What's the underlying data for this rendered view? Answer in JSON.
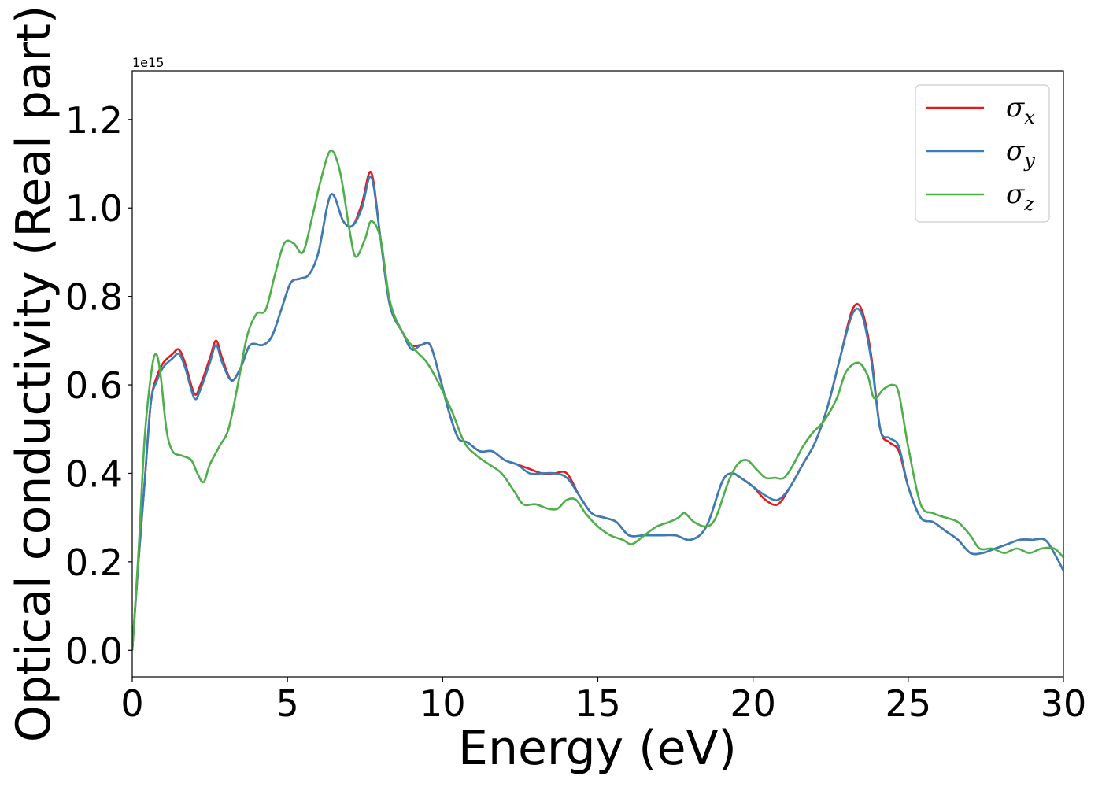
{
  "chart_data": {
    "type": "line",
    "title": "",
    "xlabel": "Energy (eV)",
    "ylabel": "Optical conductivity (Real part)",
    "y_offset_label": "1e15",
    "xlim": [
      0,
      30
    ],
    "ylim": [
      -0.06,
      1.31
    ],
    "xticks": [
      0,
      5,
      10,
      15,
      20,
      25,
      30
    ],
    "xtick_labels": [
      "0",
      "5",
      "10",
      "15",
      "20",
      "25",
      "30"
    ],
    "yticks": [
      0.0,
      0.2,
      0.4,
      0.6,
      0.8,
      1.0,
      1.2
    ],
    "ytick_labels": [
      "0.0",
      "0.2",
      "0.4",
      "0.6",
      "0.8",
      "1.0",
      "1.2"
    ],
    "grid": false,
    "legend_position": "top-right",
    "series": [
      {
        "name": "σx",
        "symbol": "σ",
        "subscript": "x",
        "color": "#e41a1c",
        "x": [
          0,
          0.2,
          0.4,
          0.6,
          0.8,
          1.0,
          1.3,
          1.5,
          1.7,
          2.0,
          2.2,
          2.5,
          2.7,
          2.9,
          3.2,
          3.5,
          3.8,
          4.2,
          4.5,
          4.8,
          5.1,
          5.4,
          5.7,
          6.0,
          6.4,
          6.8,
          7.1,
          7.4,
          7.7,
          8.0,
          8.3,
          8.7,
          9.0,
          9.3,
          9.6,
          9.9,
          10.2,
          10.5,
          10.8,
          11.2,
          11.6,
          12.0,
          12.4,
          12.8,
          13.2,
          13.6,
          14.0,
          14.4,
          14.8,
          15.2,
          15.6,
          16.0,
          16.5,
          17.0,
          17.5,
          18.0,
          18.5,
          19.0,
          19.3,
          19.6,
          20.0,
          20.4,
          20.8,
          21.2,
          21.6,
          22.0,
          22.4,
          22.8,
          23.2,
          23.5,
          23.8,
          24.1,
          24.4,
          24.7,
          25.0,
          25.4,
          25.8,
          26.2,
          26.6,
          27.0,
          27.4,
          27.8,
          28.2,
          28.6,
          29.0,
          29.4,
          29.7,
          30.0
        ],
        "y": [
          0.0,
          0.2,
          0.38,
          0.56,
          0.62,
          0.65,
          0.67,
          0.68,
          0.65,
          0.58,
          0.6,
          0.66,
          0.7,
          0.66,
          0.61,
          0.64,
          0.69,
          0.69,
          0.71,
          0.77,
          0.83,
          0.84,
          0.85,
          0.9,
          1.03,
          0.97,
          0.96,
          1.01,
          1.08,
          0.93,
          0.78,
          0.72,
          0.69,
          0.69,
          0.69,
          0.62,
          0.54,
          0.48,
          0.47,
          0.45,
          0.45,
          0.43,
          0.42,
          0.41,
          0.4,
          0.4,
          0.4,
          0.35,
          0.31,
          0.3,
          0.29,
          0.26,
          0.26,
          0.26,
          0.26,
          0.25,
          0.28,
          0.38,
          0.4,
          0.39,
          0.37,
          0.34,
          0.33,
          0.37,
          0.42,
          0.47,
          0.55,
          0.66,
          0.77,
          0.77,
          0.67,
          0.5,
          0.47,
          0.45,
          0.37,
          0.3,
          0.29,
          0.27,
          0.25,
          0.22,
          0.22,
          0.23,
          0.24,
          0.25,
          0.25,
          0.25,
          0.22,
          0.18
        ]
      },
      {
        "name": "σy",
        "symbol": "σ",
        "subscript": "y",
        "color": "#377eb8",
        "x": [
          0,
          0.2,
          0.4,
          0.6,
          0.8,
          1.0,
          1.3,
          1.5,
          1.7,
          2.0,
          2.2,
          2.5,
          2.7,
          2.9,
          3.2,
          3.5,
          3.8,
          4.2,
          4.5,
          4.8,
          5.1,
          5.4,
          5.7,
          6.0,
          6.4,
          6.8,
          7.1,
          7.4,
          7.7,
          8.0,
          8.3,
          8.7,
          9.0,
          9.3,
          9.6,
          9.9,
          10.2,
          10.5,
          10.8,
          11.2,
          11.6,
          12.0,
          12.4,
          12.8,
          13.2,
          13.6,
          14.0,
          14.4,
          14.8,
          15.2,
          15.6,
          16.0,
          16.5,
          17.0,
          17.5,
          18.0,
          18.5,
          19.0,
          19.3,
          19.6,
          20.0,
          20.4,
          20.8,
          21.2,
          21.6,
          22.0,
          22.4,
          22.8,
          23.2,
          23.5,
          23.8,
          24.1,
          24.4,
          24.7,
          25.0,
          25.4,
          25.8,
          26.2,
          26.6,
          27.0,
          27.4,
          27.8,
          28.2,
          28.6,
          29.0,
          29.4,
          29.7,
          30.0
        ],
        "y": [
          0.0,
          0.2,
          0.38,
          0.56,
          0.61,
          0.64,
          0.66,
          0.67,
          0.64,
          0.57,
          0.59,
          0.65,
          0.69,
          0.65,
          0.61,
          0.64,
          0.69,
          0.69,
          0.71,
          0.77,
          0.83,
          0.84,
          0.85,
          0.9,
          1.03,
          0.97,
          0.96,
          1.0,
          1.07,
          0.93,
          0.78,
          0.72,
          0.68,
          0.69,
          0.69,
          0.62,
          0.54,
          0.48,
          0.47,
          0.45,
          0.45,
          0.43,
          0.42,
          0.4,
          0.4,
          0.4,
          0.39,
          0.35,
          0.31,
          0.3,
          0.29,
          0.26,
          0.26,
          0.26,
          0.26,
          0.25,
          0.28,
          0.38,
          0.4,
          0.39,
          0.37,
          0.35,
          0.34,
          0.37,
          0.42,
          0.47,
          0.55,
          0.66,
          0.76,
          0.76,
          0.66,
          0.5,
          0.48,
          0.46,
          0.37,
          0.3,
          0.29,
          0.27,
          0.25,
          0.22,
          0.22,
          0.23,
          0.24,
          0.25,
          0.25,
          0.25,
          0.22,
          0.18
        ]
      },
      {
        "name": "σz",
        "symbol": "σ",
        "subscript": "z",
        "color": "#4daf4a",
        "x": [
          0,
          0.2,
          0.4,
          0.6,
          0.75,
          0.9,
          1.1,
          1.3,
          1.6,
          1.9,
          2.1,
          2.3,
          2.5,
          2.8,
          3.1,
          3.4,
          3.7,
          4.0,
          4.3,
          4.6,
          4.9,
          5.2,
          5.5,
          5.8,
          6.1,
          6.4,
          6.7,
          7.0,
          7.2,
          7.5,
          7.7,
          8.0,
          8.3,
          8.7,
          9.1,
          9.5,
          9.9,
          10.3,
          10.7,
          11.1,
          11.5,
          11.9,
          12.3,
          12.6,
          13.0,
          13.4,
          13.7,
          14.0,
          14.3,
          14.6,
          15.0,
          15.4,
          15.8,
          16.1,
          16.5,
          16.9,
          17.3,
          17.6,
          17.8,
          18.1,
          18.5,
          18.8,
          19.2,
          19.5,
          19.8,
          20.1,
          20.4,
          20.7,
          21.0,
          21.3,
          21.6,
          21.9,
          22.3,
          22.7,
          23.0,
          23.4,
          23.7,
          23.9,
          24.2,
          24.5,
          24.7,
          25.0,
          25.4,
          25.8,
          26.2,
          26.6,
          27.0,
          27.3,
          27.7,
          28.1,
          28.5,
          28.9,
          29.3,
          29.7,
          30.0
        ],
        "y": [
          0.0,
          0.22,
          0.48,
          0.62,
          0.67,
          0.63,
          0.5,
          0.45,
          0.44,
          0.43,
          0.4,
          0.38,
          0.42,
          0.46,
          0.5,
          0.6,
          0.71,
          0.76,
          0.77,
          0.85,
          0.92,
          0.92,
          0.9,
          0.98,
          1.07,
          1.13,
          1.08,
          0.95,
          0.89,
          0.93,
          0.97,
          0.93,
          0.79,
          0.72,
          0.68,
          0.65,
          0.6,
          0.54,
          0.47,
          0.44,
          0.42,
          0.4,
          0.36,
          0.33,
          0.33,
          0.32,
          0.32,
          0.34,
          0.34,
          0.31,
          0.28,
          0.26,
          0.25,
          0.24,
          0.26,
          0.28,
          0.29,
          0.3,
          0.31,
          0.29,
          0.28,
          0.3,
          0.38,
          0.42,
          0.43,
          0.41,
          0.39,
          0.39,
          0.39,
          0.42,
          0.46,
          0.49,
          0.52,
          0.57,
          0.63,
          0.65,
          0.62,
          0.57,
          0.59,
          0.6,
          0.58,
          0.46,
          0.33,
          0.31,
          0.3,
          0.29,
          0.26,
          0.23,
          0.23,
          0.22,
          0.23,
          0.22,
          0.23,
          0.23,
          0.21
        ]
      }
    ]
  }
}
